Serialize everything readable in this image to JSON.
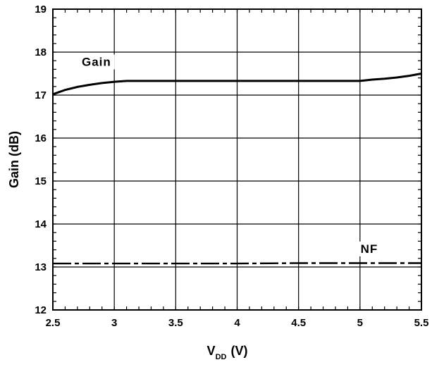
{
  "chart_data": {
    "type": "line",
    "title": "",
    "xlabel": "V",
    "xlabel_subscript": "DD",
    "xlabel_unit": "(V)",
    "ylabel": "Gain (dB)",
    "xlim": [
      2.5,
      5.5
    ],
    "ylim": [
      12,
      19
    ],
    "x_ticks": [
      "2.5",
      "3",
      "3.5",
      "4",
      "4.5",
      "5",
      "5.5"
    ],
    "y_ticks": [
      "12",
      "13",
      "14",
      "15",
      "16",
      "17",
      "18",
      "19"
    ],
    "grid": true,
    "series": [
      {
        "name": "Gain",
        "style": "solid",
        "x": [
          2.5,
          2.6,
          2.7,
          2.8,
          2.9,
          3.0,
          3.1,
          3.5,
          4.0,
          4.5,
          5.0,
          5.1,
          5.2,
          5.3,
          5.4,
          5.5
        ],
        "y": [
          17.02,
          17.12,
          17.19,
          17.24,
          17.28,
          17.31,
          17.33,
          17.33,
          17.33,
          17.33,
          17.33,
          17.36,
          17.38,
          17.41,
          17.45,
          17.5
        ]
      },
      {
        "name": "NF",
        "style": "dashdot",
        "x": [
          2.5,
          3.0,
          3.5,
          4.0,
          4.5,
          5.0,
          5.5
        ],
        "y": [
          13.08,
          13.08,
          13.08,
          13.08,
          13.09,
          13.09,
          13.09
        ]
      }
    ]
  }
}
